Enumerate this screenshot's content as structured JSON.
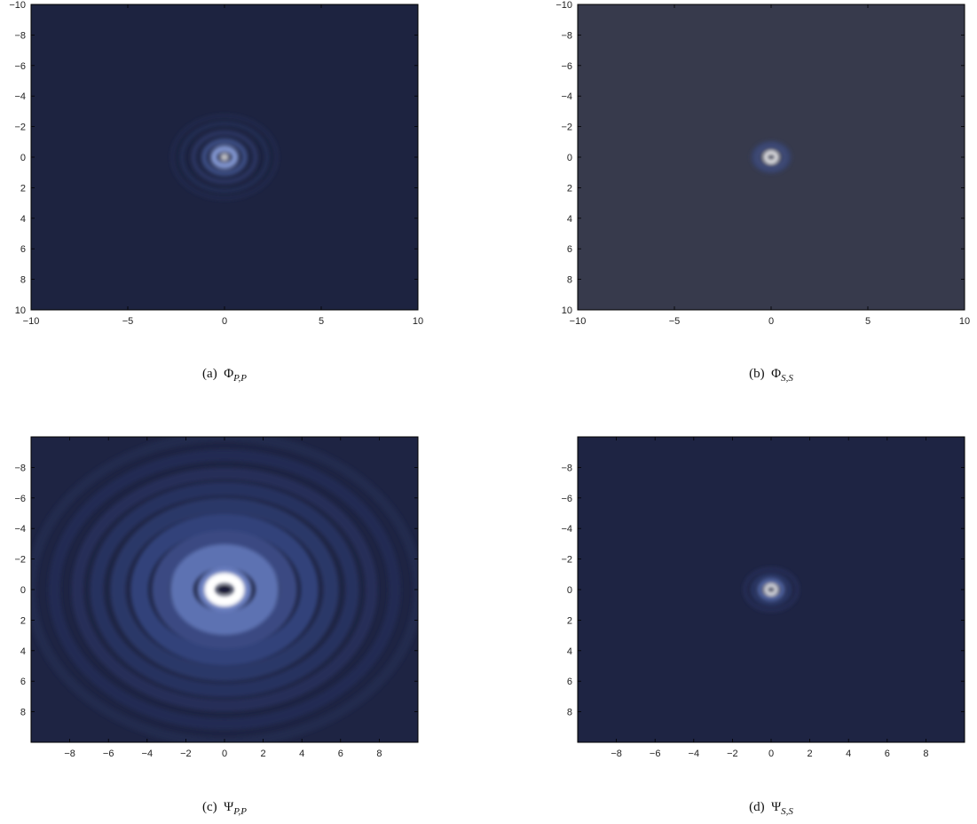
{
  "figure": {
    "colormap": [
      "#1d2340",
      "#252f56",
      "#3a4a80",
      "#6a80bc",
      "#a8b8e8",
      "#ffffff"
    ]
  },
  "chart_data": [
    {
      "type": "heatmap",
      "panel_id": "a",
      "caption": {
        "tag": "(a)",
        "symbol": "Φ",
        "subscript": "P,P"
      },
      "xlim": [
        -10,
        10
      ],
      "ylim": [
        10,
        -10
      ],
      "y_axis_inverted": true,
      "xticks": [
        -10,
        -5,
        0,
        5,
        10
      ],
      "yticks": [
        -10,
        -8,
        -6,
        -4,
        -2,
        0,
        2,
        4,
        6,
        8,
        10
      ],
      "xtick_labels": [
        "−10",
        "−5",
        "0",
        "5",
        "10"
      ],
      "ytick_labels": [
        "−10",
        "−8",
        "−6",
        "−4",
        "−2",
        "0",
        "2",
        "4",
        "6",
        "8",
        "10"
      ],
      "background_color": "#1d2340",
      "center": [
        0,
        0
      ],
      "rings": [
        {
          "r": 0.15,
          "width": 0.12,
          "color": "#ffffff"
        },
        {
          "r": 0.55,
          "width": 0.35,
          "color": "#7f93cc"
        },
        {
          "r": 1.05,
          "width": 0.3,
          "color": "#3b4b80"
        },
        {
          "r": 1.6,
          "width": 0.25,
          "color": "#2a3561"
        },
        {
          "r": 2.2,
          "width": 0.2,
          "color": "#242d55"
        },
        {
          "r": 2.7,
          "width": 0.15,
          "color": "#222a4f"
        }
      ],
      "core": {
        "r": 0.1,
        "color": "#1d2340"
      },
      "grid": false
    },
    {
      "type": "heatmap",
      "panel_id": "b",
      "caption": {
        "tag": "(b)",
        "symbol": "Φ",
        "subscript": "S,S"
      },
      "xlim": [
        -10,
        10
      ],
      "ylim": [
        10,
        -10
      ],
      "y_axis_inverted": true,
      "xticks": [
        -10,
        -5,
        0,
        5,
        10
      ],
      "yticks": [
        -10,
        -8,
        -6,
        -4,
        -2,
        0,
        2,
        4,
        6,
        8,
        10
      ],
      "xtick_labels": [
        "−10",
        "−5",
        "0",
        "5",
        "10"
      ],
      "ytick_labels": [
        "−10",
        "−8",
        "−6",
        "−4",
        "−2",
        "0",
        "2",
        "4",
        "6",
        "8",
        "10"
      ],
      "background_color": "#373a4c",
      "center": [
        0,
        0
      ],
      "rings": [
        {
          "r": 0.3,
          "width": 0.18,
          "color": "#ffffff"
        },
        {
          "r": 0.7,
          "width": 0.35,
          "color": "#3e4a74"
        },
        {
          "r": 0.95,
          "width": 0.2,
          "color": "#353f66"
        }
      ],
      "core": {
        "r": 0.12,
        "color": "#2a3258"
      },
      "grid": false
    },
    {
      "type": "heatmap",
      "panel_id": "c",
      "caption": {
        "tag": "(c)",
        "symbol": "Ψ",
        "subscript": "P,P"
      },
      "xlim": [
        -10,
        10
      ],
      "ylim": [
        10,
        -10
      ],
      "y_axis_inverted": true,
      "xticks": [
        -8,
        -6,
        -4,
        -2,
        0,
        2,
        4,
        6,
        8
      ],
      "yticks": [
        -8,
        -6,
        -4,
        -2,
        0,
        2,
        4,
        6,
        8
      ],
      "xtick_labels": [
        "−8",
        "−6",
        "−4",
        "−2",
        "0",
        "2",
        "4",
        "6",
        "8"
      ],
      "ytick_labels": [
        "−8",
        "−6",
        "−4",
        "−2",
        "0",
        "2",
        "4",
        "6",
        "8"
      ],
      "background_color": "#1e2443",
      "center": [
        0,
        0
      ],
      "rings": [
        {
          "r": 0.75,
          "width": 0.55,
          "color": "#ffffff"
        },
        {
          "r": 1.2,
          "width": 0.4,
          "color": "#6a7fc0"
        },
        {
          "r": 2.2,
          "width": 1.2,
          "color": "#5d72b2"
        },
        {
          "r": 3.3,
          "width": 0.9,
          "color": "#3a4982"
        },
        {
          "r": 4.4,
          "width": 0.9,
          "color": "#33427a"
        },
        {
          "r": 5.5,
          "width": 0.8,
          "color": "#2c3868"
        },
        {
          "r": 6.6,
          "width": 0.7,
          "color": "#28325e"
        },
        {
          "r": 7.6,
          "width": 0.6,
          "color": "#252e58"
        },
        {
          "r": 8.8,
          "width": 0.6,
          "color": "#232b52"
        },
        {
          "r": 10.0,
          "width": 0.5,
          "color": "#22294e"
        }
      ],
      "core": {
        "r": 0.3,
        "color": "#1a1f3a"
      },
      "grid": false
    },
    {
      "type": "heatmap",
      "panel_id": "d",
      "caption": {
        "tag": "(d)",
        "symbol": "Ψ",
        "subscript": "S,S"
      },
      "xlim": [
        -10,
        10
      ],
      "ylim": [
        10,
        -10
      ],
      "y_axis_inverted": true,
      "xticks": [
        -8,
        -6,
        -4,
        -2,
        0,
        2,
        4,
        6,
        8
      ],
      "yticks": [
        -8,
        -6,
        -4,
        -2,
        0,
        2,
        4,
        6,
        8
      ],
      "xtick_labels": [
        "−8",
        "−6",
        "−4",
        "−2",
        "0",
        "2",
        "4",
        "6",
        "8"
      ],
      "ytick_labels": [
        "−8",
        "−6",
        "−4",
        "−2",
        "0",
        "2",
        "4",
        "6",
        "8"
      ],
      "background_color": "#1e2443",
      "center": [
        0,
        0
      ],
      "rings": [
        {
          "r": 0.28,
          "width": 0.17,
          "color": "#ffffff"
        },
        {
          "r": 0.6,
          "width": 0.25,
          "color": "#5063a0"
        },
        {
          "r": 0.95,
          "width": 0.2,
          "color": "#2c3868"
        },
        {
          "r": 1.35,
          "width": 0.18,
          "color": "#252e58"
        }
      ],
      "core": {
        "r": 0.1,
        "color": "#1a1f3a"
      },
      "grid": false
    }
  ]
}
